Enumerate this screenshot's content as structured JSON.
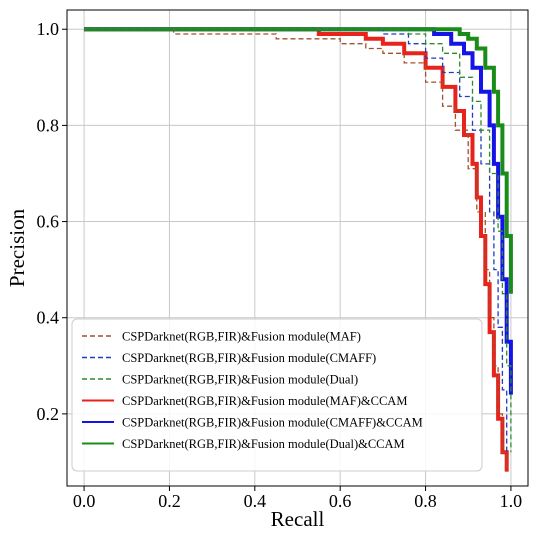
{
  "chart_data": {
    "type": "line",
    "xlabel": "Recall",
    "ylabel": "Precision",
    "xlim": [
      -0.04,
      1.04
    ],
    "ylim": [
      0.05,
      1.04
    ],
    "xticks": [
      0.0,
      0.2,
      0.4,
      0.6,
      0.8,
      1.0
    ],
    "xtick_labels": [
      "0.0",
      "0.2",
      "0.4",
      "0.6",
      "0.8",
      "1.0"
    ],
    "yticks": [
      0.2,
      0.4,
      0.6,
      0.8,
      1.0
    ],
    "ytick_labels": [
      "0.2",
      "0.4",
      "0.6",
      "0.8",
      "1.0"
    ],
    "grid": true,
    "legend_position": "bottom-right",
    "series": [
      {
        "name": "CSPDarknet(RGB,FIR)&Fusion module(MAF)",
        "color": "#a0522d",
        "style": "dashed",
        "x": [
          0.0,
          0.2,
          0.21,
          0.24,
          0.32,
          0.36,
          0.45,
          0.55,
          0.6,
          0.66,
          0.7,
          0.75,
          0.8,
          0.84,
          0.87,
          0.9,
          0.92,
          0.94,
          0.95,
          0.96,
          0.97,
          0.98,
          0.99
        ],
        "y": [
          1.0,
          1.0,
          0.99,
          0.99,
          0.99,
          0.99,
          0.98,
          0.98,
          0.97,
          0.96,
          0.95,
          0.93,
          0.89,
          0.84,
          0.79,
          0.71,
          0.62,
          0.5,
          0.4,
          0.3,
          0.2,
          0.12,
          0.08
        ]
      },
      {
        "name": "CSPDarknet(RGB,FIR)&Fusion module(CMAFF)",
        "color": "#1f3fbf",
        "style": "dashed",
        "x": [
          0.0,
          0.6,
          0.7,
          0.76,
          0.8,
          0.84,
          0.88,
          0.91,
          0.93,
          0.95,
          0.96,
          0.97,
          0.98,
          0.99
        ],
        "y": [
          1.0,
          1.0,
          0.99,
          0.97,
          0.94,
          0.91,
          0.86,
          0.79,
          0.72,
          0.62,
          0.5,
          0.38,
          0.25,
          0.12
        ]
      },
      {
        "name": "CSPDarknet(RGB,FIR)&Fusion module(Dual)",
        "color": "#2e8b2e",
        "style": "dashed",
        "x": [
          0.0,
          0.7,
          0.76,
          0.8,
          0.84,
          0.88,
          0.91,
          0.93,
          0.95,
          0.97,
          0.98,
          0.99,
          1.0
        ],
        "y": [
          1.0,
          1.0,
          0.99,
          0.97,
          0.95,
          0.9,
          0.85,
          0.79,
          0.7,
          0.58,
          0.45,
          0.3,
          0.12
        ]
      },
      {
        "name": "CSPDarknet(RGB,FIR)&Fusion module(MAF)&CCAM",
        "color": "#e8231c",
        "style": "solid-thick",
        "x": [
          0.0,
          0.55,
          0.66,
          0.7,
          0.75,
          0.8,
          0.84,
          0.87,
          0.89,
          0.91,
          0.92,
          0.93,
          0.94,
          0.95,
          0.96,
          0.97,
          0.98,
          0.99
        ],
        "y": [
          1.0,
          0.99,
          0.98,
          0.97,
          0.95,
          0.92,
          0.88,
          0.83,
          0.78,
          0.72,
          0.65,
          0.57,
          0.47,
          0.37,
          0.28,
          0.19,
          0.12,
          0.08
        ]
      },
      {
        "name": "CSPDarknet(RGB,FIR)&Fusion module(CMAFF)&CCAM",
        "color": "#1414e6",
        "style": "solid-thick",
        "x": [
          0.0,
          0.77,
          0.82,
          0.86,
          0.89,
          0.91,
          0.93,
          0.95,
          0.96,
          0.97,
          0.98,
          0.99,
          1.0
        ],
        "y": [
          1.0,
          1.0,
          0.99,
          0.97,
          0.95,
          0.92,
          0.87,
          0.8,
          0.72,
          0.61,
          0.48,
          0.35,
          0.24
        ]
      },
      {
        "name": "CSPDarknet(RGB,FIR)&Fusion module(Dual)&CCAM",
        "color": "#1a8c1a",
        "style": "solid-thick",
        "x": [
          0.0,
          0.86,
          0.88,
          0.9,
          0.92,
          0.94,
          0.96,
          0.97,
          0.98,
          0.99,
          1.0
        ],
        "y": [
          1.0,
          1.0,
          0.99,
          0.98,
          0.96,
          0.92,
          0.87,
          0.8,
          0.7,
          0.57,
          0.45
        ]
      }
    ]
  }
}
